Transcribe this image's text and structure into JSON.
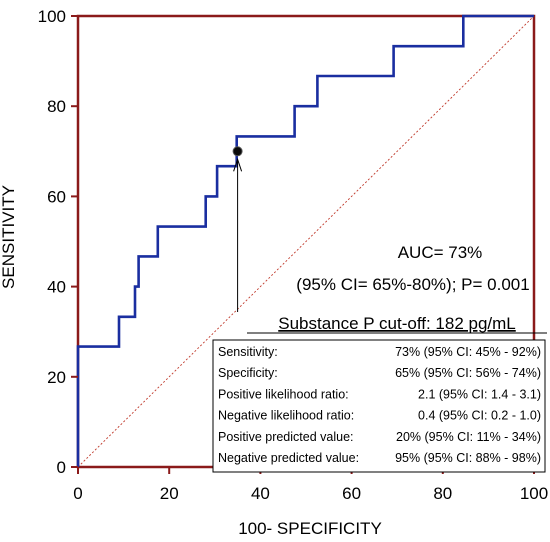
{
  "chart_data": {
    "type": "line",
    "xlabel": "100- SPECIFICITY",
    "ylabel": "SENSITIVITY",
    "xlim": [
      0,
      100
    ],
    "ylim": [
      0,
      100
    ],
    "xticks": [
      0,
      20,
      40,
      60,
      80,
      100
    ],
    "yticks": [
      0,
      20,
      40,
      60,
      80,
      100
    ],
    "grid": false,
    "series": [
      {
        "kind": "step",
        "color": "#1a2ea0",
        "points": [
          [
            0,
            0
          ],
          [
            0,
            26.7
          ],
          [
            9,
            26.7
          ],
          [
            9,
            33.3
          ],
          [
            12.5,
            33.3
          ],
          [
            12.5,
            40
          ],
          [
            13.3,
            40
          ],
          [
            13.3,
            46.7
          ],
          [
            17.5,
            46.7
          ],
          [
            17.5,
            53.3
          ],
          [
            28,
            53.3
          ],
          [
            28,
            60
          ],
          [
            30.5,
            60
          ],
          [
            30.5,
            66.7
          ],
          [
            34.8,
            66.7
          ],
          [
            34.8,
            73.3
          ],
          [
            47.5,
            73.3
          ],
          [
            47.5,
            80
          ],
          [
            52.5,
            80
          ],
          [
            52.5,
            86.7
          ],
          [
            69.2,
            86.7
          ],
          [
            69.2,
            93.3
          ],
          [
            84.5,
            93.3
          ],
          [
            84.5,
            100
          ],
          [
            100,
            100
          ]
        ]
      },
      {
        "kind": "reference-diagonal",
        "color": "#c0392b",
        "points": [
          [
            0,
            0
          ],
          [
            100,
            100
          ]
        ]
      }
    ],
    "highlight_point": {
      "x": 35,
      "y": 70
    },
    "annotations": {
      "auc_line1": "AUC= 73%",
      "auc_line2": "(95% CI= 65%-80%); P= 0.001",
      "cutoff": "Substance P cut-off: 182 pg/mL"
    },
    "stats_table": [
      {
        "label": "Sensitivity:",
        "value": "73% (95% CI: 45% - 92%)"
      },
      {
        "label": "Specificity:",
        "value": "65% (95% CI: 56% - 74%)"
      },
      {
        "label": "Positive likelihood ratio:",
        "value": "2.1 (95% CI: 1.4 - 3.1)"
      },
      {
        "label": "Negative likelihood ratio:",
        "value": "0.4 (95% CI: 0.2 - 1.0)"
      },
      {
        "label": "Positive predicted value:",
        "value": "20% (95% CI: 11% - 34%)"
      },
      {
        "label": "Negative predicted value:",
        "value": "95% (95% CI: 88% - 98%)"
      }
    ],
    "colors": {
      "frame": "#8b1a1a",
      "roc_curve": "#1a2ea0",
      "diagonal": "#c0392b"
    }
  }
}
